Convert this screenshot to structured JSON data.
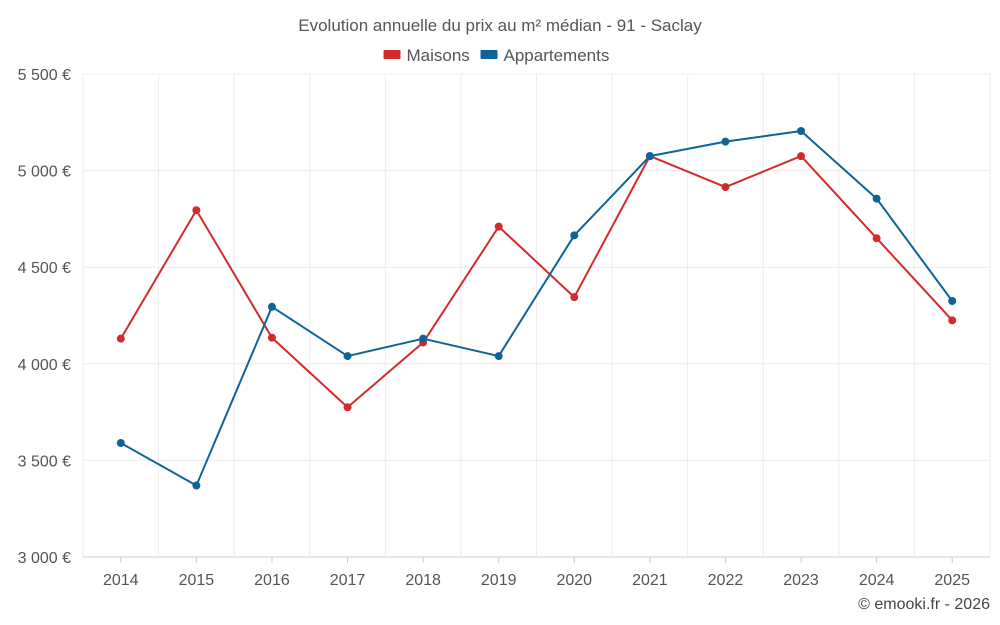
{
  "chart_data": {
    "type": "line",
    "title": "Evolution annuelle du prix au m² médian - 91 - Saclay",
    "categories": [
      "2014",
      "2015",
      "2016",
      "2017",
      "2018",
      "2019",
      "2020",
      "2021",
      "2022",
      "2023",
      "2024",
      "2025"
    ],
    "series": [
      {
        "name": "Maisons",
        "color": "#d32b2b",
        "values": [
          4130,
          4795,
          4135,
          3775,
          4110,
          4710,
          4345,
          5075,
          4915,
          5075,
          4650,
          4225
        ]
      },
      {
        "name": "Appartements",
        "color": "#0f6497",
        "values": [
          3590,
          3370,
          4295,
          4040,
          4130,
          4040,
          4665,
          5075,
          5150,
          5205,
          4855,
          4325
        ]
      }
    ],
    "ylim": [
      3000,
      5500
    ],
    "yticks": [
      3000,
      3500,
      4000,
      4500,
      5000,
      5500
    ],
    "ytick_labels": [
      "3 000 €",
      "3 500 €",
      "4 000 €",
      "4 500 €",
      "5 000 €",
      "5 500 €"
    ],
    "legend_position": "top-center",
    "grid": true,
    "xlabel": "",
    "ylabel": ""
  },
  "credit": "© emooki.fr - 2026"
}
